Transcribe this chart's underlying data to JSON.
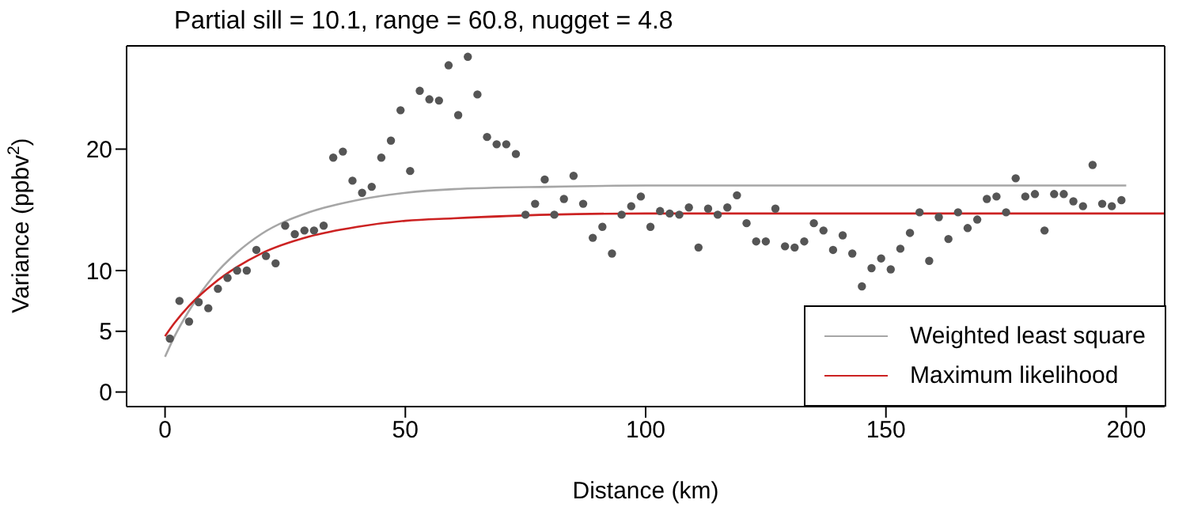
{
  "chart_data": {
    "type": "scatter",
    "title": "Partial sill = 10.1, range = 60.8, nugget = 4.8",
    "xlabel": "Distance (km)",
    "ylabel": "Variance (ppbv$^{2}$)",
    "xlim": [
      -8,
      208
    ],
    "xticks": [
      0,
      50,
      100,
      150,
      200
    ],
    "ylim": [
      -1.2,
      28.5
    ],
    "yticks": [
      0,
      5,
      10,
      20
    ],
    "grid": false,
    "legend": "bottom right",
    "marker": "circle",
    "series": [
      {
        "color": "#555555",
        "x": [
          1,
          3,
          5,
          7,
          9,
          11,
          13,
          15,
          17,
          19,
          21,
          23,
          25,
          27,
          29,
          31,
          33,
          35,
          37,
          39,
          41,
          43,
          45,
          47,
          49,
          51,
          53,
          55,
          57,
          59,
          61,
          63,
          65,
          67,
          69,
          71,
          73,
          75,
          77,
          79,
          81,
          83,
          85,
          87,
          89,
          91,
          93,
          95,
          97,
          99,
          101,
          103,
          105,
          107,
          109,
          111,
          113,
          115,
          117,
          119,
          121,
          123,
          125,
          127,
          129,
          131,
          133,
          135,
          137,
          139,
          141,
          143,
          145,
          147,
          149,
          151,
          153,
          155,
          157,
          159,
          161,
          163,
          165,
          167,
          169,
          171,
          173,
          175,
          177,
          179,
          181,
          183,
          185,
          187,
          189,
          191,
          193,
          195,
          197,
          199
        ],
        "values": [
          4.4,
          7.5,
          5.8,
          7.4,
          6.9,
          8.5,
          9.4,
          10,
          10,
          11.7,
          11.2,
          10.6,
          13.7,
          13,
          13.3,
          13.3,
          13.7,
          19.3,
          19.8,
          17.4,
          16.4,
          16.9,
          19.3,
          20.7,
          23.2,
          18.2,
          24.8,
          24.1,
          24,
          26.9,
          22.8,
          27.6,
          24.5,
          21,
          20.4,
          20.4,
          19.6,
          14.6,
          15.5,
          17.5,
          14.6,
          15.9,
          17.8,
          15.5,
          12.7,
          13.6,
          11.4,
          14.6,
          15.3,
          16.1,
          13.6,
          14.9,
          14.7,
          14.6,
          15.2,
          11.9,
          15.1,
          14.6,
          15.2,
          16.2,
          13.9,
          12.4,
          12.4,
          15.1,
          12,
          11.9,
          12.4,
          13.9,
          13.3,
          11.7,
          12.9,
          11.4,
          8.7,
          10.2,
          11,
          10.1,
          11.8,
          13.1,
          14.8,
          10.8,
          14.4,
          12.6,
          14.8,
          13.5,
          14.2,
          15.9,
          16.1,
          14.8,
          17.6,
          16.1,
          16.3,
          13.3,
          16.3,
          16.3,
          15.7,
          15.3,
          18.7,
          15.5,
          15.3,
          15.8
        ]
      },
      {
        "type": "line",
        "name": "Weighted least square",
        "color": "#a6a6a6",
        "marker": "none",
        "x": [
          0,
          2,
          5,
          10,
          15,
          20,
          30,
          40,
          50,
          60,
          80,
          100,
          150,
          200
        ],
        "values": [
          2.9,
          4.6,
          6.7,
          9.5,
          11.5,
          13,
          14.8,
          15.8,
          16.4,
          16.7,
          16.9,
          17,
          17,
          17
        ]
      },
      {
        "type": "line",
        "name": "Maximum likelihood",
        "color": "#cc2222",
        "marker": "none",
        "x": [
          0,
          2,
          5,
          10,
          15,
          20,
          30,
          40,
          50,
          60,
          80,
          100,
          150,
          200,
          208
        ],
        "values": [
          4.6,
          5.7,
          7.1,
          8.9,
          10.3,
          11.4,
          12.8,
          13.6,
          14.1,
          14.3,
          14.6,
          14.7,
          14.7,
          14.7,
          14.7
        ]
      }
    ]
  }
}
